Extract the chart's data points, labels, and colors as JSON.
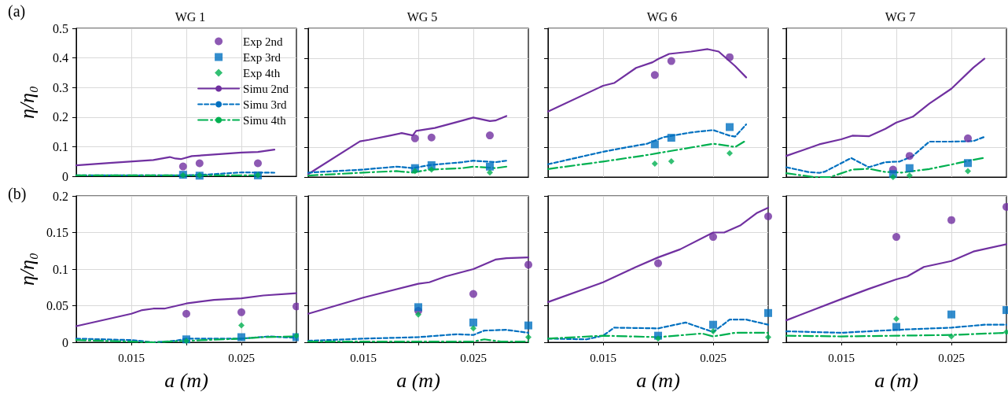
{
  "chart_data": [
    {
      "type": "line",
      "title": "WG 1",
      "ylabel": "η/η₀",
      "annotations": [
        "(a)"
      ],
      "xlim": [
        0.01,
        0.03
      ],
      "ylim": [
        0,
        0.5
      ],
      "xticks": [
        {
          "value": 0.015,
          "label": null
        },
        {
          "value": 0.02,
          "label": null
        },
        {
          "value": 0.025,
          "label": null
        }
      ],
      "yticks": [
        0,
        0.1,
        0.2,
        0.3,
        0.4,
        0.5
      ],
      "grid": true,
      "tick_labels": "y",
      "legend": "top right",
      "series": [
        {
          "name": "Exp 2nd",
          "type": "scatter",
          "marker": "circle",
          "color": "#7030a0",
          "x": [
            0.0197,
            0.0212,
            0.0265
          ],
          "values": [
            0.033,
            0.044,
            0.044
          ]
        },
        {
          "name": "Exp 3rd",
          "type": "scatter",
          "marker": "square",
          "color": "#0070c0",
          "x": [
            0.0197,
            0.0212,
            0.0265
          ],
          "values": [
            0.005,
            0.002,
            0.003
          ]
        },
        {
          "name": "Exp 4th",
          "type": "scatter",
          "marker": "diamond",
          "color": "#00b050",
          "x": [
            0.0197,
            0.0212,
            0.0265
          ],
          "values": [
            0.003,
            0.003,
            0.004
          ]
        },
        {
          "name": "Simu 2nd",
          "type": "line",
          "marker": "none",
          "line_style": "solid",
          "color": "#7030a0",
          "x": [
            0.01,
            0.013,
            0.017,
            0.0185,
            0.019,
            0.0195,
            0.0205,
            0.022,
            0.025,
            0.0265,
            0.028
          ],
          "values": [
            0.037,
            0.045,
            0.055,
            0.065,
            0.06,
            0.058,
            0.068,
            0.072,
            0.08,
            0.082,
            0.09
          ]
        },
        {
          "name": "Simu 3rd",
          "type": "line",
          "marker": "none",
          "line_style": "dashed",
          "color": "#0070c0",
          "x": [
            0.01,
            0.015,
            0.02,
            0.022,
            0.025,
            0.028
          ],
          "values": [
            0.003,
            0.003,
            0.003,
            0.006,
            0.013,
            0.012
          ]
        },
        {
          "name": "Simu 4th",
          "type": "line",
          "marker": "none",
          "line_style": "dotted",
          "color": "#00b050",
          "x": [
            0.01,
            0.015,
            0.02,
            0.0265
          ],
          "values": [
            0.003,
            0.003,
            0.003,
            0.003
          ]
        }
      ]
    },
    {
      "type": "line",
      "title": "WG 5",
      "xlim": [
        0.01,
        0.03
      ],
      "ylim": [
        0,
        0.5
      ],
      "xticks": [
        {
          "value": 0.015,
          "label": null
        },
        {
          "value": 0.02,
          "label": null
        },
        {
          "value": 0.025,
          "label": null
        }
      ],
      "yticks": [
        0,
        0.1,
        0.2,
        0.3,
        0.4,
        0.5
      ],
      "grid": true,
      "tick_labels": false,
      "series": [
        {
          "type": "scatter",
          "marker": "circle",
          "color": "#7030a0",
          "x": [
            0.0197,
            0.0212,
            0.0265
          ],
          "values": [
            0.13,
            0.133,
            0.14
          ]
        },
        {
          "type": "scatter",
          "marker": "square",
          "color": "#0070c0",
          "x": [
            0.0197,
            0.0212,
            0.0265
          ],
          "values": [
            0.03,
            0.04,
            0.035
          ]
        },
        {
          "type": "scatter",
          "marker": "diamond",
          "color": "#00b050",
          "x": [
            0.0197,
            0.0212,
            0.0265
          ],
          "values": [
            0.02,
            0.025,
            0.015
          ]
        },
        {
          "type": "line",
          "marker": "none",
          "line_style": "solid",
          "color": "#7030a0",
          "x": [
            0.01,
            0.0147,
            0.0155,
            0.0175,
            0.0185,
            0.0195,
            0.0198,
            0.0215,
            0.0235,
            0.025,
            0.0265,
            0.027,
            0.028
          ],
          "values": [
            0.01,
            0.12,
            0.125,
            0.14,
            0.148,
            0.14,
            0.155,
            0.165,
            0.185,
            0.2,
            0.188,
            0.19,
            0.205
          ]
        },
        {
          "type": "line",
          "marker": "none",
          "line_style": "dashed",
          "color": "#0070c0",
          "x": [
            0.01,
            0.015,
            0.018,
            0.0195,
            0.021,
            0.024,
            0.025,
            0.027,
            0.028
          ],
          "values": [
            0.015,
            0.025,
            0.035,
            0.03,
            0.04,
            0.05,
            0.055,
            0.05,
            0.055
          ]
        },
        {
          "type": "line",
          "marker": "none",
          "line_style": "dotted",
          "color": "#00b050",
          "x": [
            0.01,
            0.015,
            0.018,
            0.0195,
            0.021,
            0.024,
            0.025,
            0.027,
            0.028
          ],
          "values": [
            0.005,
            0.015,
            0.02,
            0.015,
            0.025,
            0.03,
            0.035,
            0.03,
            0.035
          ]
        }
      ]
    },
    {
      "type": "line",
      "title": "WG 6",
      "xlim": [
        0.01,
        0.03
      ],
      "ylim": [
        0,
        0.5
      ],
      "xticks": [
        {
          "value": 0.015,
          "label": null
        },
        {
          "value": 0.02,
          "label": null
        },
        {
          "value": 0.025,
          "label": null
        }
      ],
      "yticks": [
        0,
        0.1,
        0.2,
        0.3,
        0.4,
        0.5
      ],
      "grid": true,
      "tick_labels": false,
      "series": [
        {
          "type": "scatter",
          "marker": "circle",
          "color": "#7030a0",
          "x": [
            0.0197,
            0.0212,
            0.0265
          ],
          "values": [
            0.343,
            0.39,
            0.403
          ]
        },
        {
          "type": "scatter",
          "marker": "square",
          "color": "#0070c0",
          "x": [
            0.0197,
            0.0212,
            0.0265
          ],
          "values": [
            0.11,
            0.132,
            0.168
          ]
        },
        {
          "type": "scatter",
          "marker": "diamond",
          "color": "#00b050",
          "x": [
            0.0197,
            0.0212,
            0.0265
          ],
          "values": [
            0.045,
            0.053,
            0.08
          ]
        },
        {
          "type": "line",
          "marker": "none",
          "line_style": "solid",
          "color": "#7030a0",
          "x": [
            0.01,
            0.015,
            0.016,
            0.018,
            0.0195,
            0.02,
            0.021,
            0.023,
            0.0245,
            0.0255,
            0.027,
            0.028
          ],
          "values": [
            0.22,
            0.307,
            0.316,
            0.367,
            0.386,
            0.397,
            0.414,
            0.422,
            0.43,
            0.422,
            0.373,
            0.335
          ]
        },
        {
          "type": "line",
          "marker": "none",
          "line_style": "dashed",
          "color": "#0070c0",
          "x": [
            0.01,
            0.015,
            0.017,
            0.019,
            0.0205,
            0.023,
            0.025,
            0.0265,
            0.027,
            0.028
          ],
          "values": [
            0.043,
            0.085,
            0.099,
            0.112,
            0.134,
            0.15,
            0.158,
            0.139,
            0.136,
            0.177
          ]
        },
        {
          "type": "line",
          "marker": "none",
          "line_style": "dotted",
          "color": "#00b050",
          "x": [
            0.01,
            0.015,
            0.019,
            0.022,
            0.025,
            0.026,
            0.027,
            0.028
          ],
          "values": [
            0.027,
            0.052,
            0.074,
            0.093,
            0.112,
            0.107,
            0.101,
            0.123
          ]
        }
      ]
    },
    {
      "type": "line",
      "title": "WG 7",
      "xlim": [
        0.01,
        0.03
      ],
      "ylim": [
        0,
        0.5
      ],
      "xticks": [
        {
          "value": 0.015,
          "label": null
        },
        {
          "value": 0.02,
          "label": null
        },
        {
          "value": 0.025,
          "label": null
        }
      ],
      "yticks": [
        0,
        0.1,
        0.2,
        0.3,
        0.4,
        0.5
      ],
      "grid": true,
      "tick_labels": false,
      "series": [
        {
          "type": "scatter",
          "marker": "circle",
          "color": "#7030a0",
          "x": [
            0.0197,
            0.0212,
            0.0265
          ],
          "values": [
            0.025,
            0.071,
            0.13
          ]
        },
        {
          "type": "scatter",
          "marker": "square",
          "color": "#0070c0",
          "x": [
            0.0197,
            0.0212,
            0.0265
          ],
          "values": [
            0.01,
            0.03,
            0.047
          ]
        },
        {
          "type": "scatter",
          "marker": "diamond",
          "color": "#00b050",
          "x": [
            0.0197,
            0.0212,
            0.0265
          ],
          "values": [
            0.0,
            0.005,
            0.02
          ]
        },
        {
          "type": "line",
          "marker": "none",
          "line_style": "solid",
          "color": "#7030a0",
          "x": [
            0.01,
            0.013,
            0.015,
            0.016,
            0.0175,
            0.019,
            0.02,
            0.0215,
            0.023,
            0.025,
            0.027,
            0.028
          ],
          "values": [
            0.071,
            0.11,
            0.127,
            0.139,
            0.137,
            0.162,
            0.183,
            0.203,
            0.247,
            0.297,
            0.368,
            0.398
          ]
        },
        {
          "type": "line",
          "marker": "none",
          "line_style": "dashed",
          "color": "#0070c0",
          "x": [
            0.01,
            0.012,
            0.013,
            0.0135,
            0.0159,
            0.0175,
            0.019,
            0.0203,
            0.0215,
            0.023,
            0.025,
            0.027,
            0.028
          ],
          "values": [
            0.033,
            0.017,
            0.014,
            0.018,
            0.064,
            0.033,
            0.05,
            0.052,
            0.071,
            0.119,
            0.119,
            0.121,
            0.135
          ]
        },
        {
          "type": "line",
          "marker": "none",
          "line_style": "dotted",
          "color": "#00b050",
          "x": [
            0.01,
            0.0125,
            0.014,
            0.016,
            0.0175,
            0.019,
            0.0205,
            0.023,
            0.025,
            0.027,
            0.028
          ],
          "values": [
            0.013,
            0.0,
            0.0,
            0.025,
            0.028,
            0.017,
            0.015,
            0.027,
            0.042,
            0.058,
            0.065
          ]
        }
      ]
    },
    {
      "type": "line",
      "xlabel": "a (m)",
      "ylabel": "η/η₀",
      "annotations": [
        "(b)"
      ],
      "xlim": [
        0.01,
        0.03
      ],
      "ylim": [
        0,
        0.2
      ],
      "xticks": [
        {
          "value": 0.015,
          "label": "0.015"
        },
        {
          "value": 0.02,
          "label": null
        },
        {
          "value": 0.025,
          "label": "0.025"
        }
      ],
      "yticks": [
        0,
        0.05,
        0.1,
        0.15,
        0.2
      ],
      "grid": true,
      "series": [
        {
          "type": "scatter",
          "marker": "circle",
          "color": "#7030a0",
          "x": [
            0.02,
            0.025,
            0.03
          ],
          "values": [
            0.039,
            0.041,
            0.049
          ]
        },
        {
          "type": "scatter",
          "marker": "square",
          "color": "#0070c0",
          "x": [
            0.02,
            0.025,
            0.03
          ],
          "values": [
            0.004,
            0.007,
            0.007
          ]
        },
        {
          "type": "scatter",
          "marker": "diamond",
          "color": "#00b050",
          "x": [
            0.02,
            0.025,
            0.03
          ],
          "values": [
            0.002,
            0.023,
            0.009
          ]
        },
        {
          "type": "line",
          "marker": "none",
          "line_style": "solid",
          "color": "#7030a0",
          "x": [
            0.01,
            0.015,
            0.016,
            0.017,
            0.018,
            0.02,
            0.0225,
            0.025,
            0.027,
            0.03
          ],
          "values": [
            0.022,
            0.039,
            0.044,
            0.046,
            0.046,
            0.053,
            0.058,
            0.06,
            0.064,
            0.067
          ]
        },
        {
          "type": "line",
          "marker": "none",
          "line_style": "dashed",
          "color": "#0070c0",
          "x": [
            0.01,
            0.015,
            0.017,
            0.019,
            0.02,
            0.025,
            0.0275,
            0.03
          ],
          "values": [
            0.005,
            0.003,
            0.0,
            0.002,
            0.005,
            0.005,
            0.008,
            0.006
          ]
        },
        {
          "type": "line",
          "marker": "none",
          "line_style": "dotted",
          "color": "#00b050",
          "x": [
            0.01,
            0.017,
            0.02,
            0.025,
            0.027,
            0.03
          ],
          "values": [
            0.003,
            0.0,
            0.002,
            0.005,
            0.007,
            0.008
          ]
        }
      ]
    },
    {
      "type": "line",
      "xlabel": "a (m)",
      "xlim": [
        0.01,
        0.03
      ],
      "ylim": [
        0,
        0.2
      ],
      "xticks": [
        {
          "value": 0.015,
          "label": "0.015"
        },
        {
          "value": 0.02,
          "label": null
        },
        {
          "value": 0.025,
          "label": "0.025"
        }
      ],
      "yticks": [
        0,
        0.05,
        0.1,
        0.15,
        0.2
      ],
      "grid": true,
      "tick_labels": "x",
      "series": [
        {
          "type": "scatter",
          "marker": "circle",
          "color": "#7030a0",
          "x": [
            0.02,
            0.025,
            0.03
          ],
          "values": [
            0.043,
            0.066,
            0.106
          ]
        },
        {
          "type": "scatter",
          "marker": "square",
          "color": "#0070c0",
          "x": [
            0.02,
            0.025,
            0.03
          ],
          "values": [
            0.048,
            0.027,
            0.023
          ]
        },
        {
          "type": "scatter",
          "marker": "diamond",
          "color": "#00b050",
          "x": [
            0.02,
            0.025,
            0.03
          ],
          "values": [
            0.038,
            0.019,
            0.007
          ]
        },
        {
          "type": "line",
          "marker": "none",
          "line_style": "solid",
          "color": "#7030a0",
          "x": [
            0.01,
            0.015,
            0.02,
            0.021,
            0.0225,
            0.025,
            0.027,
            0.028,
            0.03
          ],
          "values": [
            0.039,
            0.061,
            0.08,
            0.082,
            0.09,
            0.1,
            0.113,
            0.115,
            0.116
          ]
        },
        {
          "type": "line",
          "marker": "none",
          "line_style": "dashed",
          "color": "#0070c0",
          "x": [
            0.01,
            0.015,
            0.02,
            0.0235,
            0.025,
            0.026,
            0.028,
            0.03
          ],
          "values": [
            0.002,
            0.005,
            0.007,
            0.011,
            0.01,
            0.016,
            0.017,
            0.013
          ]
        },
        {
          "type": "line",
          "marker": "none",
          "line_style": "dotted",
          "color": "#00b050",
          "x": [
            0.01,
            0.02,
            0.025,
            0.026,
            0.0275,
            0.03
          ],
          "values": [
            0.001,
            0.001,
            0.001,
            0.004,
            0.001,
            0.001
          ]
        }
      ]
    },
    {
      "type": "line",
      "xlabel": "a (m)",
      "xlim": [
        0.01,
        0.03
      ],
      "ylim": [
        0,
        0.2
      ],
      "xticks": [
        {
          "value": 0.015,
          "label": "0.015"
        },
        {
          "value": 0.02,
          "label": null
        },
        {
          "value": 0.025,
          "label": "0.025"
        }
      ],
      "yticks": [
        0,
        0.05,
        0.1,
        0.15,
        0.2
      ],
      "grid": true,
      "tick_labels": "x",
      "series": [
        {
          "type": "scatter",
          "marker": "circle",
          "color": "#7030a0",
          "x": [
            0.02,
            0.025,
            0.03
          ],
          "values": [
            0.108,
            0.144,
            0.172
          ]
        },
        {
          "type": "scatter",
          "marker": "square",
          "color": "#0070c0",
          "x": [
            0.02,
            0.025,
            0.03
          ],
          "values": [
            0.009,
            0.024,
            0.04
          ]
        },
        {
          "type": "scatter",
          "marker": "diamond",
          "color": "#00b050",
          "x": [
            0.02,
            0.025,
            0.03
          ],
          "values": [
            0.005,
            0.015,
            0.007
          ]
        },
        {
          "type": "line",
          "marker": "none",
          "line_style": "solid",
          "color": "#7030a0",
          "x": [
            0.01,
            0.015,
            0.018,
            0.02,
            0.022,
            0.025,
            0.026,
            0.0275,
            0.029,
            0.03
          ],
          "values": [
            0.055,
            0.082,
            0.103,
            0.116,
            0.127,
            0.15,
            0.15,
            0.16,
            0.177,
            0.184
          ]
        },
        {
          "type": "line",
          "marker": "none",
          "line_style": "dashed",
          "color": "#0070c0",
          "x": [
            0.01,
            0.0135,
            0.015,
            0.016,
            0.02,
            0.0225,
            0.025,
            0.0265,
            0.028,
            0.03
          ],
          "values": [
            0.005,
            0.004,
            0.009,
            0.02,
            0.019,
            0.027,
            0.014,
            0.031,
            0.031,
            0.024
          ]
        },
        {
          "type": "line",
          "marker": "none",
          "line_style": "dotted",
          "color": "#00b050",
          "x": [
            0.01,
            0.015,
            0.02,
            0.024,
            0.025,
            0.027,
            0.03
          ],
          "values": [
            0.005,
            0.009,
            0.007,
            0.012,
            0.008,
            0.013,
            0.013
          ]
        }
      ]
    },
    {
      "type": "line",
      "xlabel": "a (m)",
      "xlim": [
        0.01,
        0.03
      ],
      "ylim": [
        0,
        0.2
      ],
      "xticks": [
        {
          "value": 0.015,
          "label": "0.015"
        },
        {
          "value": 0.02,
          "label": null
        },
        {
          "value": 0.025,
          "label": "0.025"
        }
      ],
      "yticks": [
        0,
        0.05,
        0.1,
        0.15,
        0.2
      ],
      "grid": true,
      "tick_labels": "x",
      "series": [
        {
          "type": "scatter",
          "marker": "circle",
          "color": "#7030a0",
          "x": [
            0.02,
            0.025,
            0.03
          ],
          "values": [
            0.144,
            0.167,
            0.185
          ]
        },
        {
          "type": "scatter",
          "marker": "square",
          "color": "#0070c0",
          "x": [
            0.02,
            0.025,
            0.03
          ],
          "values": [
            0.021,
            0.038,
            0.044
          ]
        },
        {
          "type": "scatter",
          "marker": "diamond",
          "color": "#00b050",
          "x": [
            0.02,
            0.025,
            0.03
          ],
          "values": [
            0.032,
            0.008,
            0.014
          ]
        },
        {
          "type": "line",
          "marker": "none",
          "line_style": "solid",
          "color": "#7030a0",
          "x": [
            0.01,
            0.015,
            0.0175,
            0.02,
            0.021,
            0.0225,
            0.025,
            0.027,
            0.03
          ],
          "values": [
            0.03,
            0.059,
            0.073,
            0.086,
            0.09,
            0.103,
            0.111,
            0.124,
            0.134
          ]
        },
        {
          "type": "line",
          "marker": "none",
          "line_style": "dashed",
          "color": "#0070c0",
          "x": [
            0.01,
            0.015,
            0.02,
            0.025,
            0.028,
            0.03
          ],
          "values": [
            0.015,
            0.013,
            0.017,
            0.02,
            0.024,
            0.024
          ]
        },
        {
          "type": "line",
          "marker": "none",
          "line_style": "dotted",
          "color": "#00b050",
          "x": [
            0.01,
            0.015,
            0.02,
            0.025,
            0.03
          ],
          "values": [
            0.009,
            0.008,
            0.009,
            0.01,
            0.013
          ]
        }
      ]
    }
  ]
}
